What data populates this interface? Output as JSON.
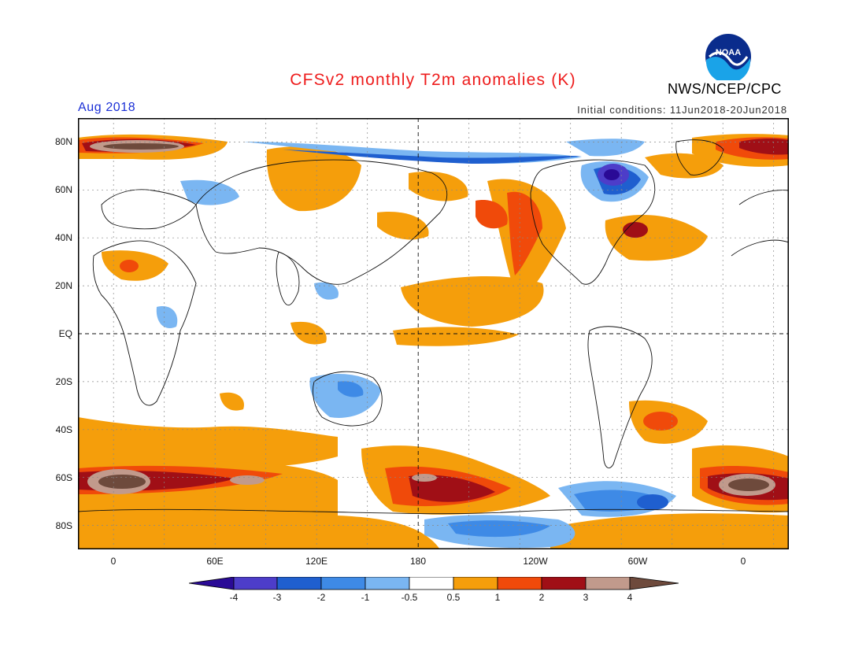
{
  "header": {
    "title": "CFSv2 monthly T2m anomalies (K)",
    "valid_month": "Aug 2018",
    "agency": "NWS/NCEP/CPC",
    "initial_conditions": "Initial conditions: 11Jun2018-20Jun2018",
    "logo_text": "NOAA"
  },
  "map": {
    "projection": "cylindrical equidistant",
    "lon_range": [
      -30,
      390
    ],
    "lat_range": [
      -90,
      90
    ],
    "lat_labels": [
      "80N",
      "60N",
      "40N",
      "20N",
      "EQ",
      "20S",
      "40S",
      "60S",
      "80S"
    ],
    "lon_labels": [
      "0",
      "60E",
      "120E",
      "180",
      "120W",
      "60W",
      "0"
    ],
    "grid": "dotted, every 30 degrees",
    "reference_lines": [
      "equator",
      "180 meridian"
    ]
  },
  "colorbar": {
    "labels": [
      "-4",
      "-3",
      "-2",
      "-1",
      "-0.5",
      "0.5",
      "1",
      "2",
      "3",
      "4"
    ],
    "colors": [
      "#2a0a96",
      "#4d3dc9",
      "#1f5fcf",
      "#3e8ae6",
      "#7ab6f2",
      "#ffffff",
      "#f59e0b",
      "#f04a0a",
      "#a00f16",
      "#c19a8c",
      "#6e4a3c"
    ]
  }
}
